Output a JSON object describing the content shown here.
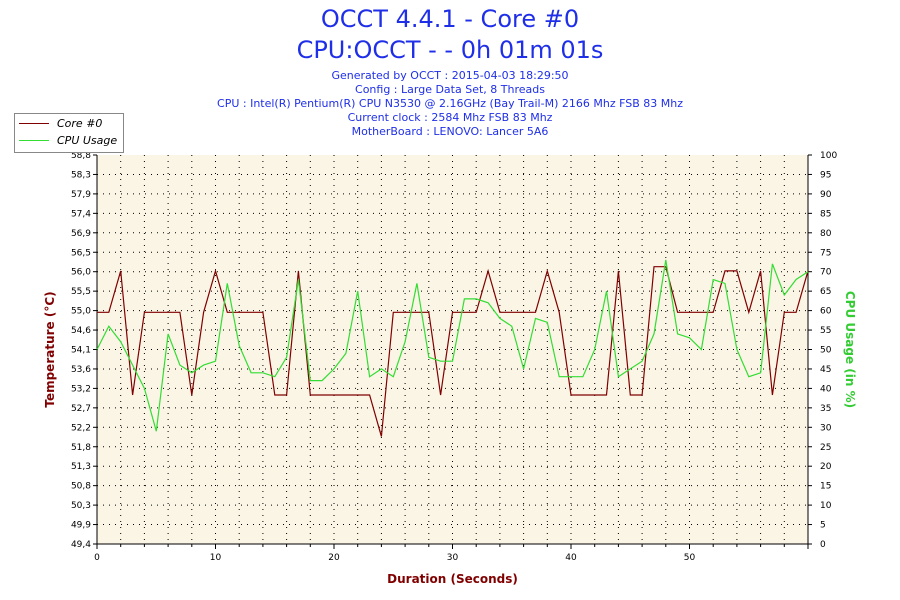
{
  "header": {
    "title": "OCCT 4.4.1 - Core #0",
    "subtitle": "CPU:OCCT -  - 0h 01m 01s",
    "info_lines": [
      "Generated by OCCT : 2015-04-03 18:29:50",
      "Config : Large Data Set, 8 Threads",
      "CPU : Intel(R) Pentium(R) CPU N3530 @ 2.16GHz (Bay Trail-M) 2166 Mhz FSB 83 Mhz",
      "Current clock : 2584 Mhz FSB 83 Mhz",
      "MotherBoard : LENOVO: Lancer 5A6"
    ]
  },
  "legend": {
    "items": [
      {
        "label": "Core #0",
        "color": "#800000"
      },
      {
        "label": "CPU Usage",
        "color": "#33dd33"
      }
    ]
  },
  "colors": {
    "plot_background": "#fbf5e6",
    "grid": "#000000",
    "left_axis_label": "#800000",
    "right_axis_label": "#33cc33"
  },
  "chart_data": {
    "type": "line",
    "xlabel": "Duration (Seconds)",
    "ylabel_left": "Temperature (°C)",
    "ylabel_right": "CPU Usage (in %)",
    "xlim": [
      0,
      60
    ],
    "ylim_left": [
      49.4,
      58.8
    ],
    "ylim_right": [
      0,
      100
    ],
    "x_ticks": [
      "0",
      "10",
      "20",
      "30",
      "40",
      "50"
    ],
    "y_left_ticks": [
      "49,4",
      "49,9",
      "50,3",
      "50,8",
      "51,3",
      "51,8",
      "52,2",
      "52,7",
      "53,2",
      "53,6",
      "54,1",
      "54,6",
      "55,0",
      "55,5",
      "56,0",
      "56,5",
      "56,9",
      "57,4",
      "57,9",
      "58,3",
      "58,8"
    ],
    "y_right_ticks": [
      "0",
      "5",
      "10",
      "15",
      "20",
      "25",
      "30",
      "35",
      "40",
      "45",
      "50",
      "55",
      "60",
      "65",
      "70",
      "75",
      "80",
      "85",
      "90",
      "95",
      "100"
    ],
    "grid": true,
    "legend_position": "top-left",
    "series": [
      {
        "name": "Core #0",
        "axis": "left",
        "color": "#800000",
        "x": [
          0,
          1,
          2,
          3,
          4,
          5,
          6,
          7,
          8,
          9,
          10,
          11,
          12,
          13,
          14,
          15,
          16,
          17,
          18,
          19,
          20,
          21,
          22,
          23,
          24,
          25,
          26,
          27,
          28,
          29,
          30,
          31,
          32,
          33,
          34,
          35,
          36,
          37,
          38,
          39,
          40,
          41,
          42,
          43,
          44,
          45,
          46,
          47,
          48,
          49,
          50,
          51,
          52,
          53,
          54,
          55,
          56,
          57,
          58,
          59,
          60
        ],
        "values": [
          55.0,
          55.0,
          56.0,
          53.0,
          55.0,
          55.0,
          55.0,
          55.0,
          53.0,
          55.0,
          56.0,
          55.0,
          55.0,
          55.0,
          55.0,
          53.0,
          53.0,
          56.0,
          53.0,
          53.0,
          53.0,
          53.0,
          53.0,
          53.0,
          52.0,
          55.0,
          55.0,
          55.0,
          55.0,
          53.0,
          55.0,
          55.0,
          55.0,
          56.0,
          55.0,
          55.0,
          55.0,
          55.0,
          56.0,
          55.0,
          53.0,
          53.0,
          53.0,
          53.0,
          56.0,
          53.0,
          53.0,
          56.1,
          56.1,
          55.0,
          55.0,
          55.0,
          55.0,
          56.0,
          56.0,
          55.0,
          56.0,
          53.0,
          55.0,
          55.0,
          56.0
        ]
      },
      {
        "name": "CPU Usage",
        "axis": "right",
        "color": "#33dd33",
        "x": [
          0,
          1,
          2,
          3,
          4,
          5,
          6,
          7,
          8,
          9,
          10,
          11,
          12,
          13,
          14,
          15,
          16,
          17,
          18,
          19,
          20,
          21,
          22,
          23,
          24,
          25,
          26,
          27,
          28,
          29,
          30,
          31,
          32,
          33,
          34,
          35,
          36,
          37,
          38,
          39,
          40,
          41,
          42,
          43,
          44,
          45,
          46,
          47,
          48,
          49,
          50,
          51,
          52,
          53,
          54,
          55,
          56,
          57,
          58,
          59,
          60
        ],
        "values": [
          50,
          56,
          52,
          46,
          40,
          29,
          54,
          46,
          44,
          46,
          47,
          67,
          51,
          44,
          44,
          43,
          48,
          68,
          42,
          42,
          45,
          49,
          65,
          43,
          45,
          43,
          52,
          67,
          48,
          47,
          47,
          63,
          63,
          62,
          58,
          56,
          45,
          58,
          57,
          43,
          43,
          43,
          50,
          65,
          43,
          45,
          47,
          54,
          73,
          54,
          53,
          50,
          68,
          67,
          50,
          43,
          44,
          72,
          64,
          68,
          70
        ]
      }
    ]
  }
}
